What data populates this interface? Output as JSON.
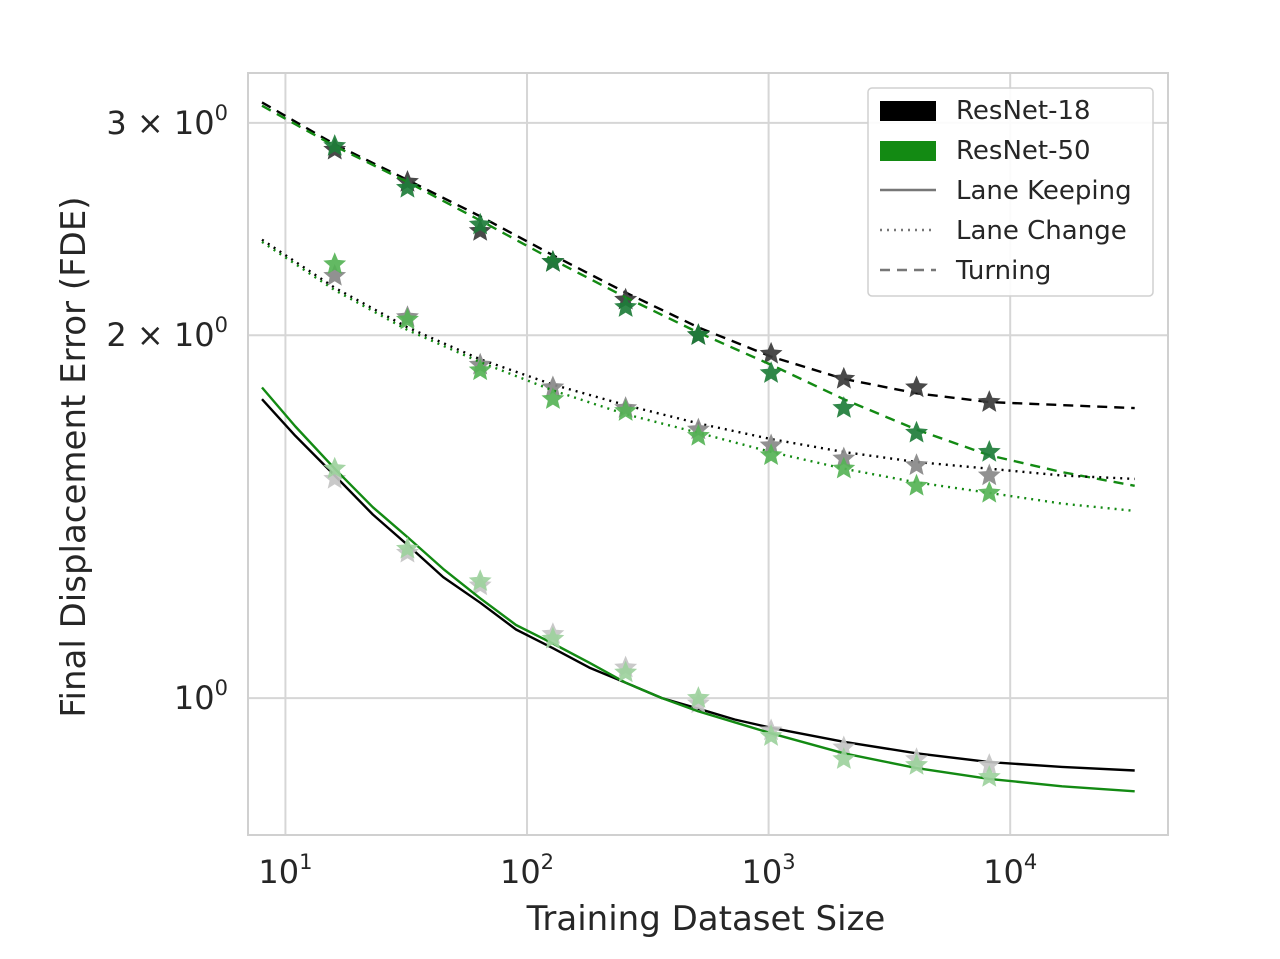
{
  "chart_data": {
    "type": "line",
    "title": "",
    "xlabel": "Training Dataset Size",
    "ylabel": "Final Displacement Error (FDE)",
    "xscale": "log",
    "yscale": "log",
    "xlim": [
      7,
      45000
    ],
    "ylim": [
      0.77,
      3.3
    ],
    "grid": true,
    "xticks": [
      {
        "value": 10,
        "base": "10",
        "exp": "1"
      },
      {
        "value": 100,
        "base": "10",
        "exp": "2"
      },
      {
        "value": 1000,
        "base": "10",
        "exp": "3"
      },
      {
        "value": 10000,
        "base": "10",
        "exp": "4"
      }
    ],
    "yticks": [
      {
        "value": 1,
        "pre": "",
        "base": "10",
        "exp": "0"
      },
      {
        "value": 2,
        "pre": "2 × ",
        "base": "10",
        "exp": "0"
      },
      {
        "value": 3,
        "pre": "3 × ",
        "base": "10",
        "exp": "0"
      }
    ],
    "x": [
      16,
      32,
      64,
      128,
      256,
      512,
      1024,
      2048,
      4096,
      8192
    ],
    "series": [
      {
        "name": "ResNet-18 Turning",
        "model": "ResNet-18",
        "task": "Turning",
        "color": "#000000",
        "marker_color": "#3a3a3a",
        "dash": "10,7",
        "points": [
          2.85,
          2.68,
          2.44,
          2.3,
          2.14,
          2.0,
          1.93,
          1.84,
          1.81,
          1.76
        ],
        "fit": {
          "x": [
            8,
            16,
            32,
            64,
            128,
            256,
            512,
            1024,
            2048,
            4096,
            8192,
            16384,
            32768
          ],
          "y": [
            3.12,
            2.88,
            2.69,
            2.51,
            2.33,
            2.17,
            2.03,
            1.92,
            1.84,
            1.79,
            1.76,
            1.75,
            1.74
          ]
        }
      },
      {
        "name": "ResNet-50 Turning",
        "model": "ResNet-50",
        "task": "Turning",
        "color": "#138a13",
        "marker_color": "#1e7d3a",
        "dash": "10,7",
        "points": [
          2.87,
          2.65,
          2.47,
          2.3,
          2.11,
          2.0,
          1.86,
          1.74,
          1.66,
          1.6
        ],
        "fit": {
          "x": [
            8,
            16,
            32,
            64,
            128,
            256,
            512,
            1024,
            2048,
            4096,
            8192,
            16384,
            32768
          ],
          "y": [
            3.1,
            2.87,
            2.68,
            2.49,
            2.31,
            2.15,
            2.01,
            1.89,
            1.77,
            1.67,
            1.59,
            1.54,
            1.5
          ]
        }
      },
      {
        "name": "ResNet-18 Lane Change",
        "model": "ResNet-18",
        "task": "Lane Change",
        "color": "#000000",
        "marker_color": "#888888",
        "dash": "2,5",
        "points": [
          2.24,
          2.07,
          1.89,
          1.81,
          1.74,
          1.67,
          1.62,
          1.58,
          1.56,
          1.53
        ],
        "fit": {
          "x": [
            8,
            16,
            32,
            64,
            128,
            256,
            512,
            1024,
            2048,
            4096,
            8192,
            16384,
            32768
          ],
          "y": [
            2.4,
            2.19,
            2.03,
            1.91,
            1.82,
            1.75,
            1.69,
            1.64,
            1.6,
            1.57,
            1.55,
            1.53,
            1.52
          ]
        }
      },
      {
        "name": "ResNet-50 Lane Change",
        "model": "ResNet-50",
        "task": "Lane Change",
        "color": "#138a13",
        "marker_color": "#56b356",
        "dash": "2,5",
        "points": [
          2.29,
          2.06,
          1.87,
          1.77,
          1.73,
          1.65,
          1.59,
          1.55,
          1.5,
          1.48
        ],
        "fit": {
          "x": [
            8,
            16,
            32,
            64,
            128,
            256,
            512,
            1024,
            2048,
            4096,
            8192,
            16384,
            32768
          ],
          "y": [
            2.39,
            2.18,
            2.02,
            1.9,
            1.8,
            1.72,
            1.66,
            1.6,
            1.55,
            1.51,
            1.48,
            1.45,
            1.43
          ]
        }
      },
      {
        "name": "ResNet-18 Lane Keeping",
        "model": "ResNet-18",
        "task": "Lane Keeping",
        "color": "#000000",
        "marker_color": "#c4c4c4",
        "dash": "",
        "points": [
          1.52,
          1.32,
          1.24,
          1.13,
          1.06,
          0.99,
          0.94,
          0.91,
          0.89,
          0.88
        ],
        "fit": {
          "x": [
            8,
            11,
            16,
            23,
            32,
            45,
            64,
            90,
            128,
            181,
            256,
            362,
            512,
            724,
            1024,
            2048,
            4096,
            8192,
            16384,
            32768
          ],
          "y": [
            1.77,
            1.65,
            1.53,
            1.42,
            1.34,
            1.26,
            1.2,
            1.14,
            1.1,
            1.06,
            1.03,
            1.0,
            0.98,
            0.96,
            0.945,
            0.92,
            0.9,
            0.885,
            0.877,
            0.871
          ]
        }
      },
      {
        "name": "ResNet-50 Lane Keeping",
        "model": "ResNet-50",
        "task": "Lane Keeping",
        "color": "#138a13",
        "marker_color": "#9dd19d",
        "dash": "",
        "points": [
          1.55,
          1.33,
          1.25,
          1.12,
          1.05,
          1.0,
          0.93,
          0.89,
          0.88,
          0.86
        ],
        "fit": {
          "x": [
            8,
            11,
            16,
            23,
            32,
            45,
            64,
            90,
            128,
            181,
            256,
            362,
            512,
            724,
            1024,
            2048,
            4096,
            8192,
            16384,
            32768
          ],
          "y": [
            1.81,
            1.68,
            1.55,
            1.44,
            1.36,
            1.28,
            1.21,
            1.15,
            1.11,
            1.07,
            1.03,
            1.0,
            0.975,
            0.955,
            0.935,
            0.9,
            0.875,
            0.857,
            0.845,
            0.837
          ]
        }
      }
    ],
    "legend": {
      "position": "top-right",
      "entries": [
        {
          "label": "ResNet-18",
          "kind": "patch",
          "color": "#000000"
        },
        {
          "label": "ResNet-50",
          "kind": "patch",
          "color": "#138a13"
        },
        {
          "label": "Lane Keeping",
          "kind": "line",
          "color": "#777777",
          "dash": ""
        },
        {
          "label": "Lane Change",
          "kind": "line",
          "color": "#777777",
          "dash": "2,5"
        },
        {
          "label": "Turning",
          "kind": "line",
          "color": "#777777",
          "dash": "10,7"
        }
      ]
    }
  }
}
